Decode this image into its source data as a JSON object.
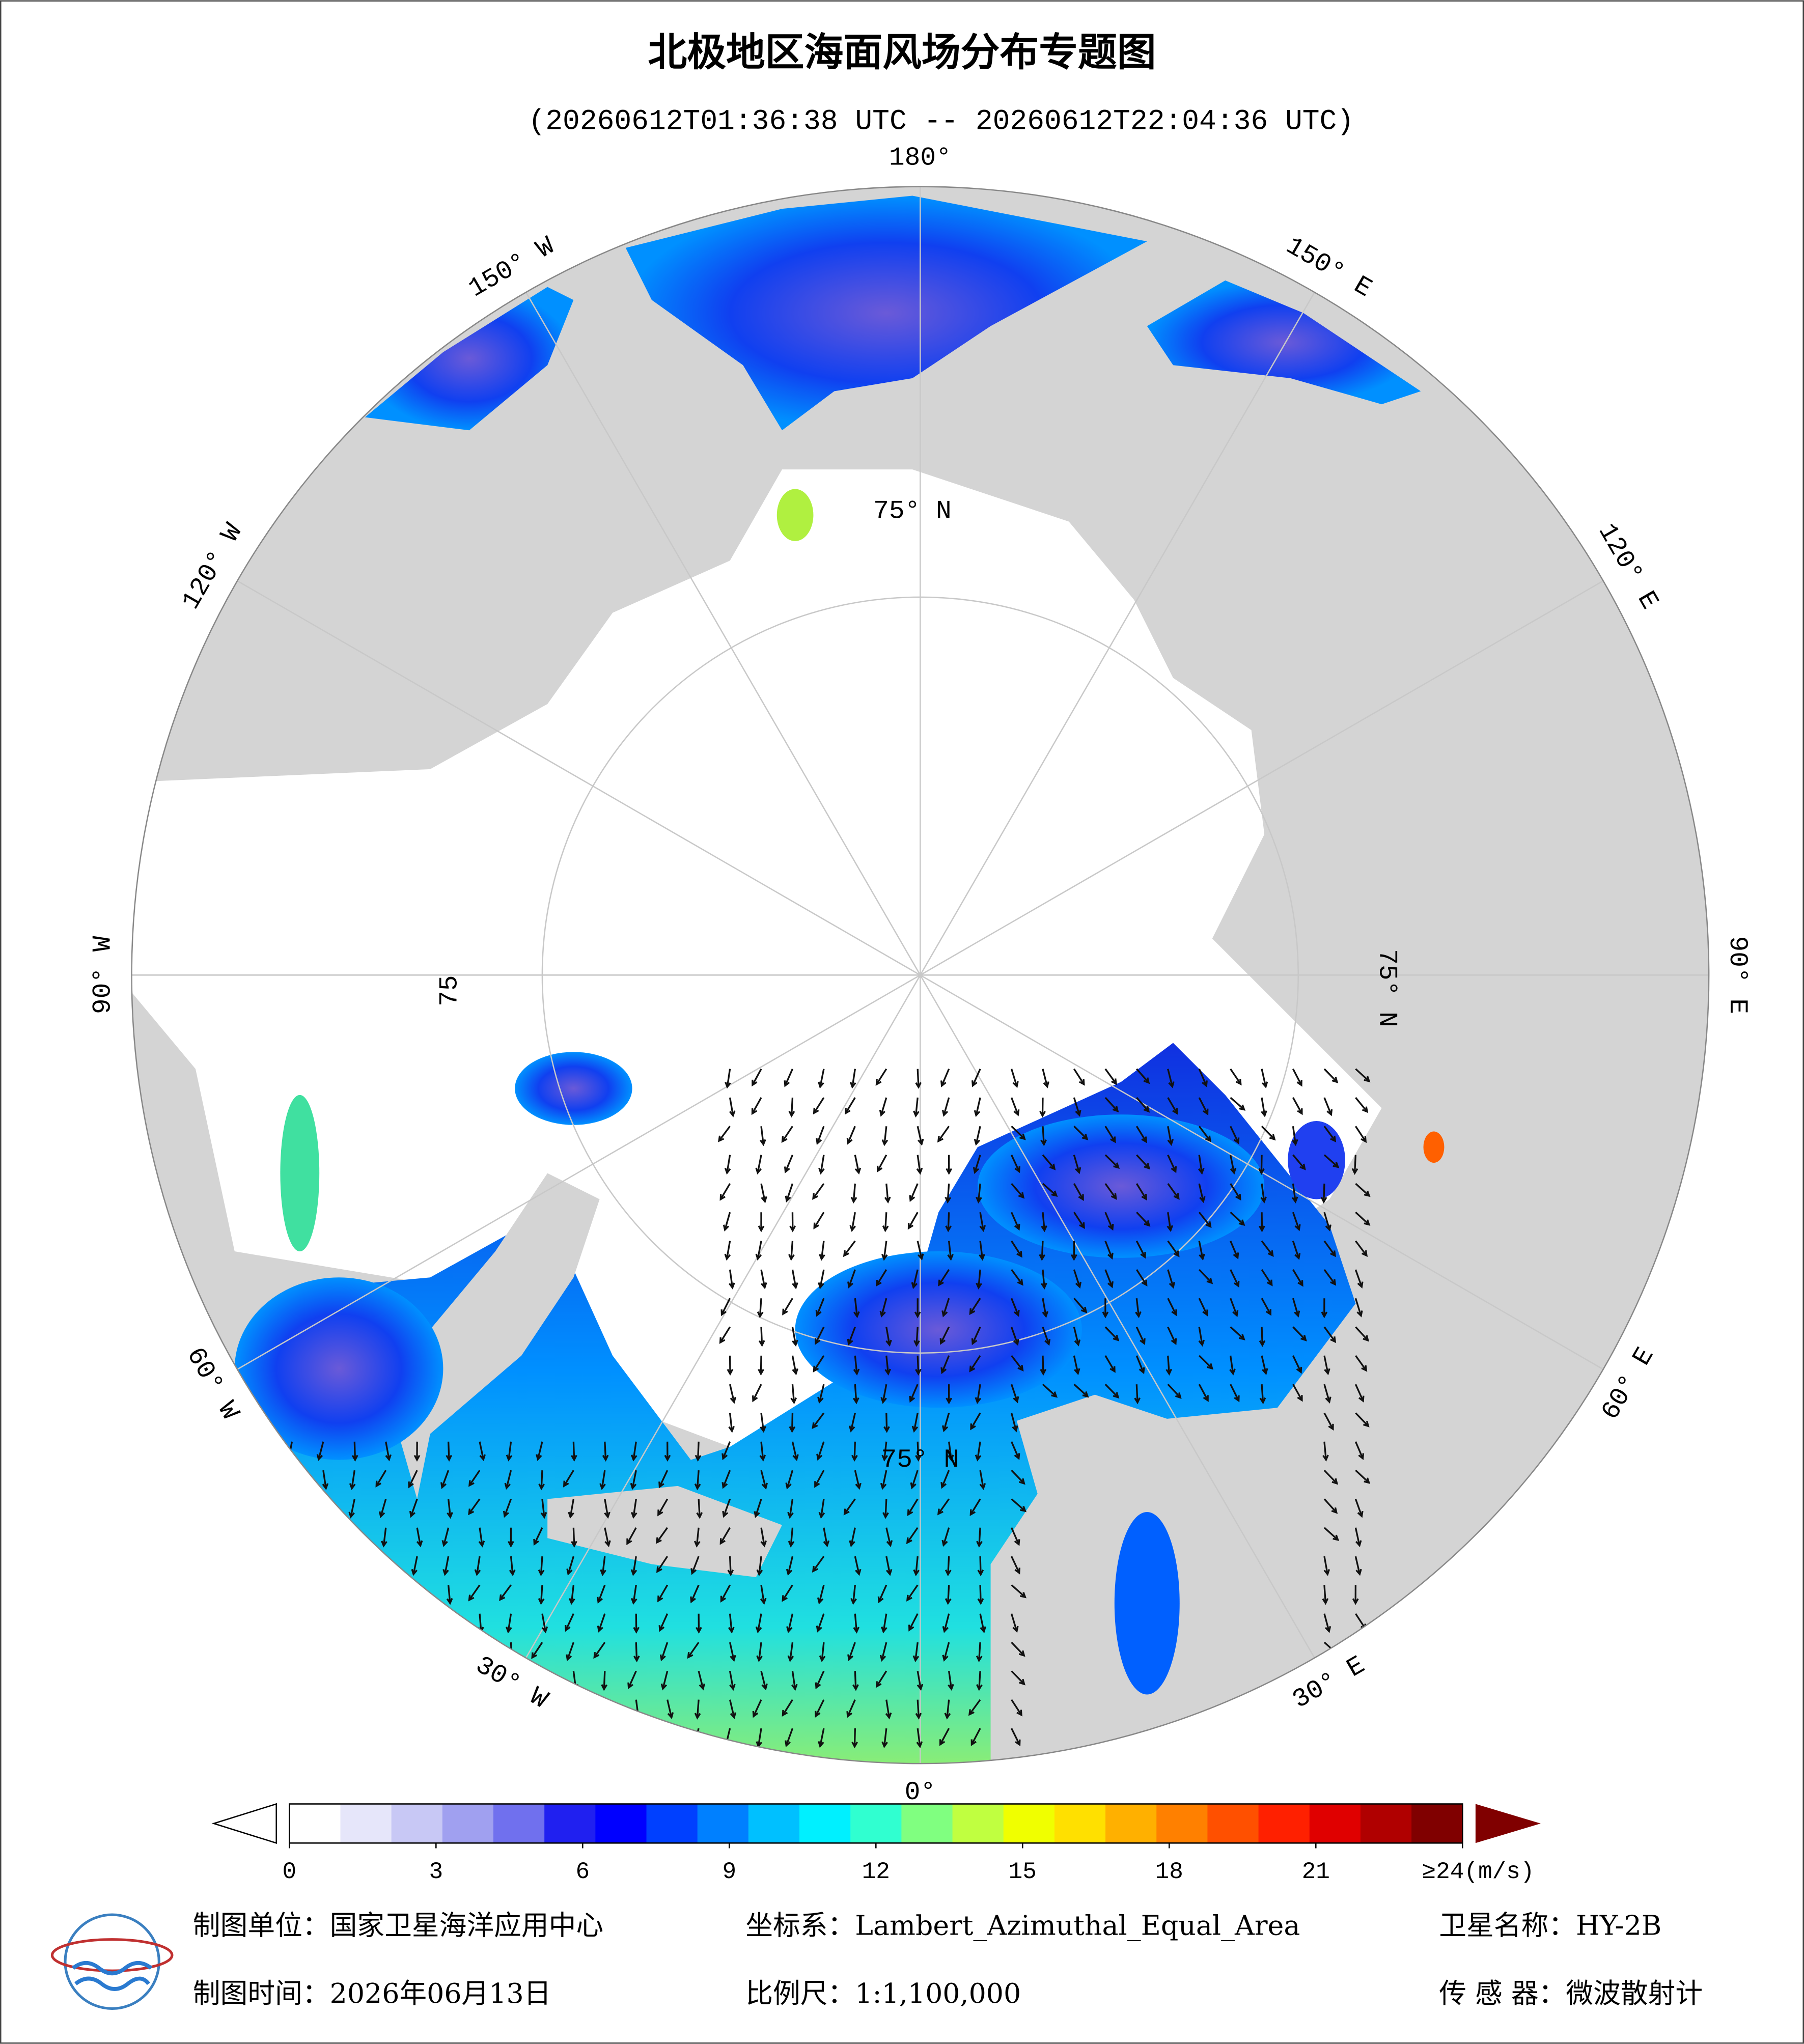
{
  "map": {
    "title": "北极地区海面风场分布专题图",
    "subtitle": "(20260612T01:36:38 UTC -- 20260612T22:04:36 UTC)",
    "lon_labels": [
      "180°",
      "150° E",
      "120° E",
      "90° E",
      "60° E",
      "30° E",
      "0°",
      "30° W",
      "60° W",
      "90° W",
      "120° W",
      "150° W"
    ],
    "lat_labels": [
      "75° N",
      "75° N",
      "75",
      "75° N"
    ],
    "colorbar": {
      "lim": [
        0,
        24
      ],
      "ticks": [
        0,
        3,
        6,
        9,
        12,
        15,
        18,
        21,
        {
          "value": 24,
          "label": "≥24(m/s)"
        }
      ],
      "colors": [
        "#ffffff",
        "#e6e6fa",
        "#c8c8f5",
        "#a0a0f0",
        "#7070ee",
        "#2020f0",
        "#0000ff",
        "#0040ff",
        "#0080ff",
        "#00c0ff",
        "#00f0ff",
        "#30ffd0",
        "#80ff80",
        "#c0ff40",
        "#f0ff00",
        "#ffe000",
        "#ffb000",
        "#ff8000",
        "#ff5000",
        "#ff2000",
        "#e00000",
        "#b00000",
        "#800000"
      ]
    },
    "footer": {
      "unit": "制图单位：国家卫星海洋应用中心",
      "crs": "坐标系：Lambert_Azimuthal_Equal_Area",
      "satellite": "卫星名称：HY-2B",
      "date": "制图时间：2026年06月13日",
      "scale": "比例尺：1:1,100,000",
      "sensor": "传 感 器：微波散射计"
    }
  }
}
